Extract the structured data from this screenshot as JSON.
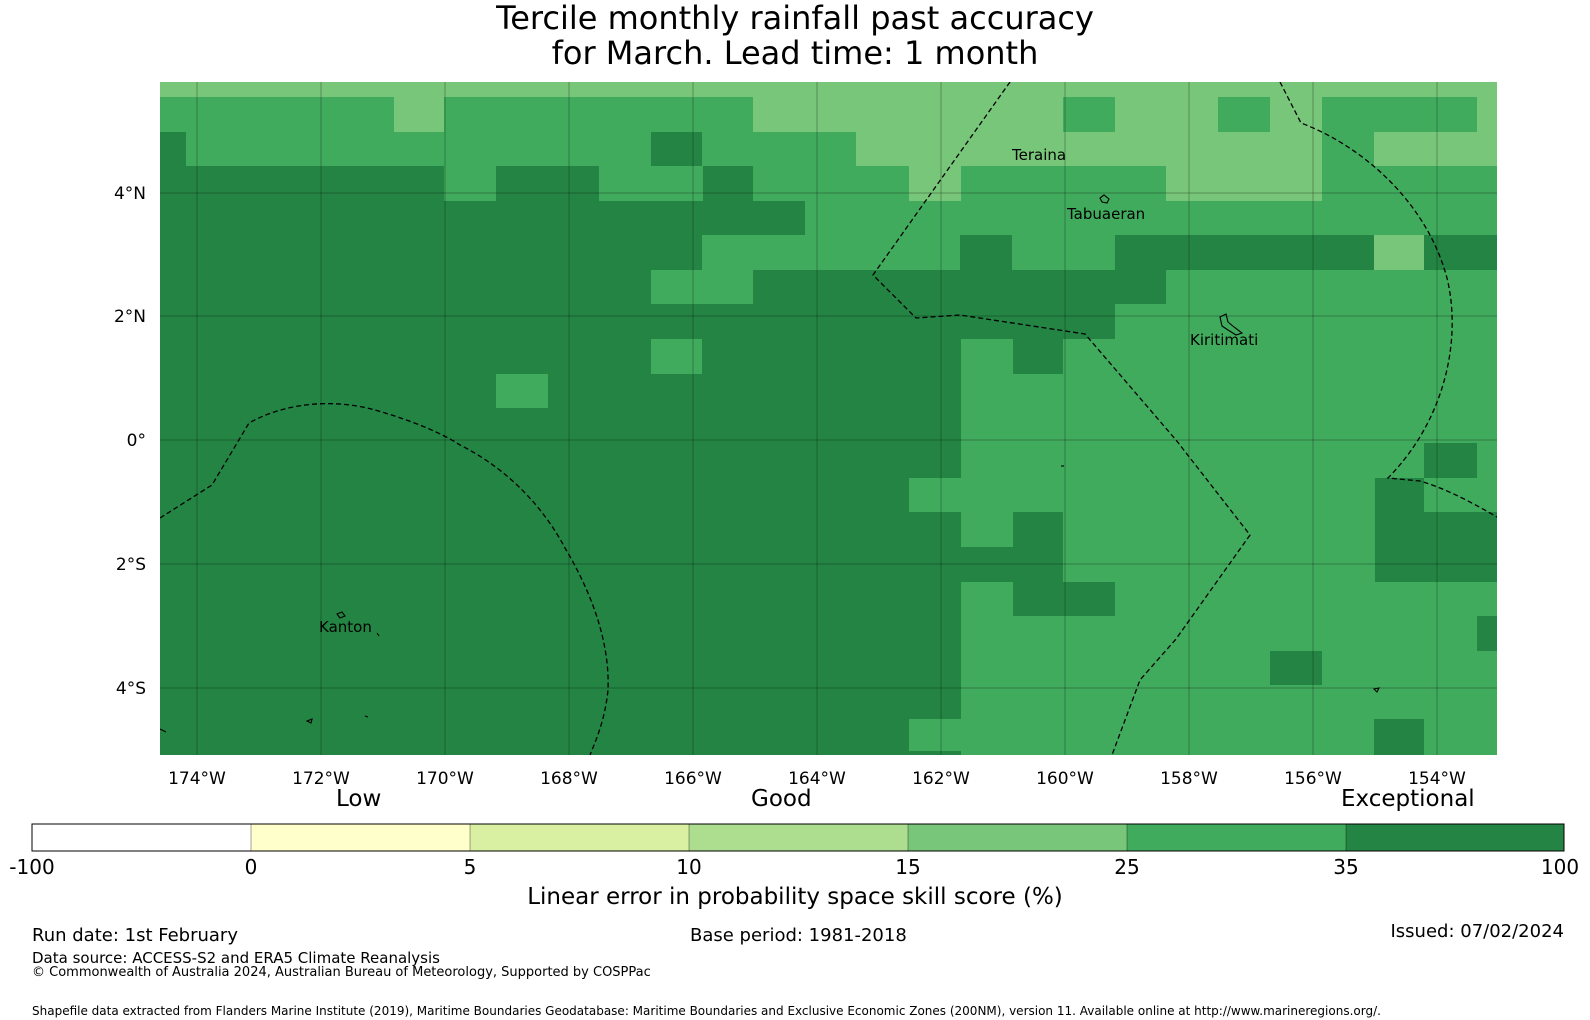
{
  "title": {
    "line1": "Tercile monthly rainfall past accuracy",
    "line2": "for March. Lead time: 1 month"
  },
  "map": {
    "lon_range": [
      -174.6,
      -153.0
    ],
    "lat_range": [
      -5.15,
      5.75
    ],
    "lon_ticks": [
      "174°W",
      "172°W",
      "170°W",
      "168°W",
      "166°W",
      "164°W",
      "162°W",
      "160°W",
      "158°W",
      "156°W",
      "154°W"
    ],
    "lat_ticks": [
      "4°N",
      "2°N",
      "0°",
      "2°S",
      "4°S"
    ],
    "places": [
      "Teraina",
      "Tabuaeran",
      "Kiritimati",
      "Kanton"
    ],
    "background_category": "35-100",
    "colors": {
      "c0": "#ffffff",
      "c1": "#ffffcc",
      "c2": "#d9f0a3",
      "c3": "#addd8e",
      "c4": "#78c679",
      "c5": "#41ab5d",
      "c6": "#238443"
    }
  },
  "legend": {
    "categories": [
      "Low",
      "Good",
      "Exceptional"
    ],
    "ticks": [
      "-100",
      "0",
      "5",
      "10",
      "15",
      "25",
      "35",
      "100"
    ],
    "label": "Linear error in probability space skill score (%)"
  },
  "footer": {
    "run_date": "Run date: 1st February",
    "base_period": "Base period: 1981-2018",
    "issued": "Issued: 07/02/2024",
    "data_source": "Data source: ACCESS-S2 and ERA5 Climate Reanalysis",
    "copyright": "© Commonwealth of Australia 2024, Australian Bureau of Meteorology, Supported by COSPPac",
    "shapefile": "Shapefile data extracted from Flanders Marine Institute (2019), Maritime Boundaries Geodatabase: Maritime Boundaries and Exclusive Economic Zones (200NM), version 11. Available online at http://www.marineregions.org/."
  }
}
